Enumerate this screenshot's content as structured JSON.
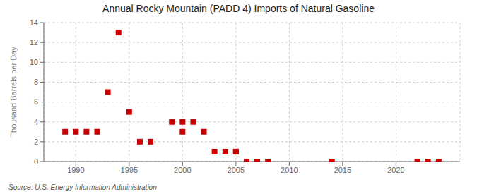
{
  "chart_data": {
    "type": "scatter",
    "title": "Annual Rocky Mountain (PADD 4) Imports of Natural Gasoline",
    "ylabel": "Thousand Barrels per Day",
    "annotation": "Source: U.S. Energy Information Administration",
    "x": [
      1989,
      1990,
      1991,
      1992,
      1993,
      1994,
      1995,
      1996,
      1997,
      1999,
      2000,
      2000,
      2001,
      2002,
      2003,
      2004,
      2005,
      2005,
      2006,
      2007,
      2008,
      2014,
      2022,
      2023,
      2024
    ],
    "values": [
      3,
      3,
      3,
      3,
      7,
      13,
      5,
      2,
      2,
      4,
      3,
      4,
      4,
      3,
      1,
      1,
      1,
      1,
      0,
      0,
      0,
      0,
      0,
      0,
      0
    ],
    "color": "#cc0000",
    "marker": "square",
    "xlim": [
      1987,
      2026
    ],
    "ylim": [
      0,
      14
    ],
    "xticks": [
      1990,
      1995,
      2000,
      2005,
      2010,
      2015,
      2020
    ],
    "yticks": [
      0,
      2,
      4,
      6,
      8,
      10,
      12,
      14
    ],
    "grid": true
  }
}
